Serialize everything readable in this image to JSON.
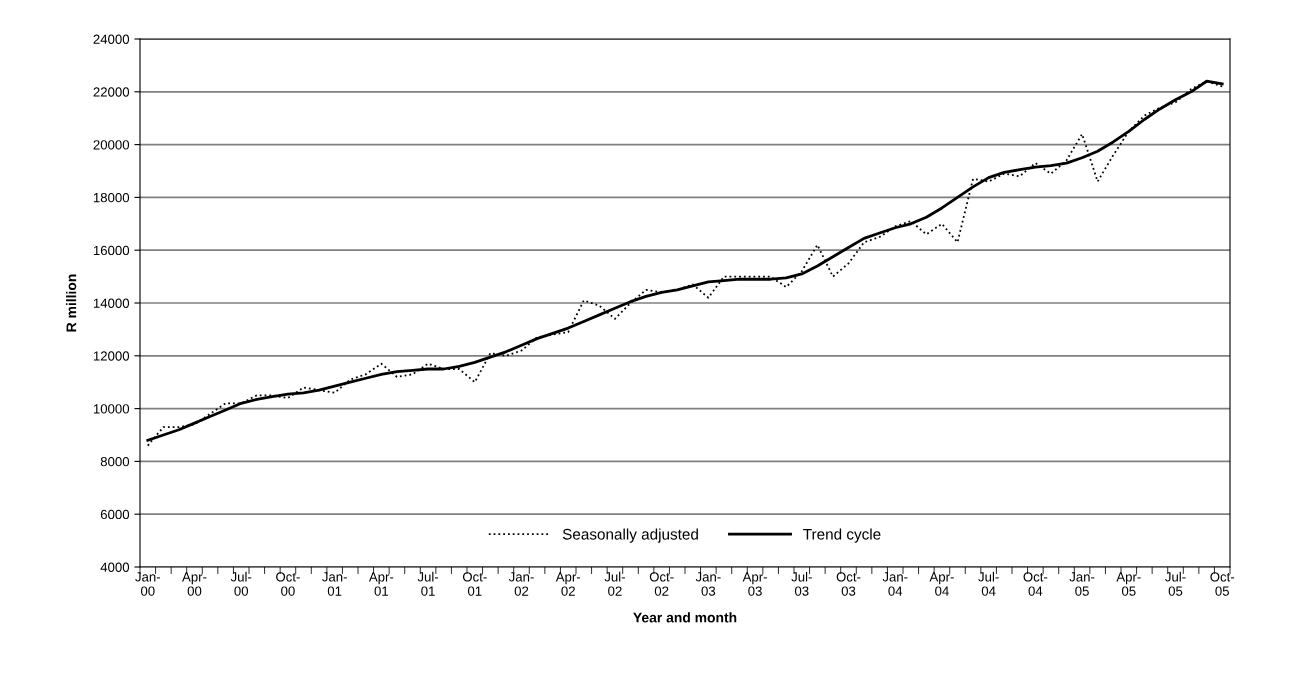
{
  "chart_data": {
    "type": "line",
    "xlabel": "Year and month",
    "ylabel": "R million",
    "categories": [
      "Jan-00",
      null,
      null,
      "Apr-00",
      null,
      null,
      "Jul-00",
      null,
      null,
      "Oct-00",
      null,
      null,
      "Jan-01",
      null,
      null,
      "Apr-01",
      null,
      null,
      "Jul-01",
      null,
      null,
      "Oct-01",
      null,
      null,
      "Jan-02",
      null,
      null,
      "Apr-02",
      null,
      null,
      "Jul-02",
      null,
      null,
      "Oct-02",
      null,
      null,
      "Jan-03",
      null,
      null,
      "Apr-03",
      null,
      null,
      "Jul-03",
      null,
      null,
      "Oct-03",
      null,
      null,
      "Jan-04",
      null,
      null,
      "Apr-04",
      null,
      null,
      "Jul-04",
      null,
      null,
      "Oct-04",
      null,
      null,
      "Jan-05",
      null,
      null,
      "Apr-05",
      null,
      null,
      "Jul-05",
      null,
      null,
      "Oct-05"
    ],
    "series": [
      {
        "name": "Seasonally adjusted",
        "color": "#000000",
        "line_style": "dotted",
        "values": [
          8600,
          9300,
          9300,
          9400,
          9800,
          10200,
          10200,
          10500,
          10500,
          10400,
          10800,
          10700,
          10600,
          11100,
          11300,
          11700,
          11200,
          11300,
          11700,
          11500,
          11500,
          11000,
          12100,
          12000,
          12200,
          12700,
          12800,
          12900,
          14100,
          13900,
          13400,
          14000,
          14500,
          14400,
          14500,
          14700,
          14200,
          15000,
          15000,
          15000,
          15000,
          14600,
          15200,
          16200,
          15000,
          15500,
          16300,
          16500,
          16900,
          17100,
          16600,
          17000,
          16300,
          18700,
          18600,
          18900,
          18800,
          19300,
          18900,
          19400,
          20400,
          18600,
          19600,
          20500,
          21100,
          21400,
          21600,
          22100,
          22400,
          22200
        ]
      },
      {
        "name": "Trend cycle",
        "color": "#000000",
        "line_style": "solid",
        "values": [
          8800,
          9000,
          9200,
          9450,
          9700,
          9950,
          10200,
          10350,
          10450,
          10550,
          10600,
          10700,
          10850,
          11000,
          11150,
          11300,
          11400,
          11450,
          11500,
          11500,
          11600,
          11750,
          11950,
          12150,
          12400,
          12650,
          12850,
          13050,
          13300,
          13550,
          13800,
          14050,
          14250,
          14400,
          14500,
          14650,
          14800,
          14850,
          14900,
          14900,
          14900,
          14950,
          15100,
          15400,
          15750,
          16100,
          16450,
          16650,
          16850,
          17000,
          17250,
          17600,
          18000,
          18400,
          18750,
          18950,
          19050,
          19150,
          19200,
          19300,
          19500,
          19750,
          20100,
          20500,
          20950,
          21350,
          21700,
          22000,
          22400,
          22300
        ]
      }
    ],
    "ylim": [
      4000,
      24000
    ],
    "yticks": [
      4000,
      6000,
      8000,
      10000,
      12000,
      14000,
      16000,
      18000,
      20000,
      22000,
      24000
    ],
    "grid": "y",
    "legend": "bottom",
    "marker": "none"
  }
}
